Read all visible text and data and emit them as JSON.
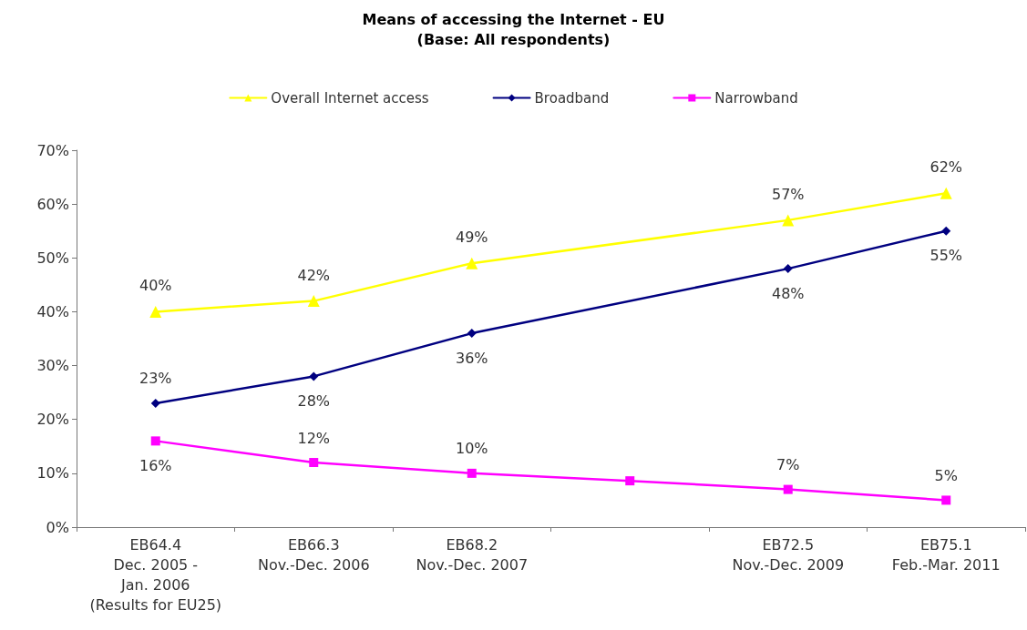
{
  "chart_data": {
    "type": "line",
    "title": "Means of accessing the Internet - EU",
    "subtitle": "(Base: All respondents)",
    "categories": [
      "EB64.4\nDec. 2005 -\nJan. 2006\n(Results for EU25)",
      "EB66.3\nNov.-Dec. 2006",
      "EB68.2\nNov.-Dec. 2007",
      null,
      "EB72.5\nNov.-Dec. 2009",
      "EB75.1\nFeb.-Mar. 2011"
    ],
    "series": [
      {
        "name": "Overall Internet access",
        "color": "#ffff00",
        "marker": "triangle",
        "values": [
          40,
          42,
          49,
          null,
          57,
          62
        ],
        "value_labels": [
          "40%",
          "42%",
          "49%",
          null,
          "57%",
          "62%"
        ]
      },
      {
        "name": "Broadband",
        "color": "#000080",
        "marker": "diamond",
        "values": [
          23,
          28,
          36,
          null,
          48,
          55
        ],
        "value_labels": [
          "23%",
          "28%",
          "36%",
          null,
          "48%",
          "55%"
        ]
      },
      {
        "name": "Narrowband",
        "color": "#ff00ff",
        "marker": "square",
        "values": [
          16,
          12,
          10,
          8.6,
          7,
          5
        ],
        "value_labels": [
          "16%",
          "12%",
          "10%",
          null,
          "7%",
          "5%"
        ]
      }
    ],
    "ylim": [
      0,
      70
    ],
    "yticks": [
      {
        "value": 0,
        "label": "0%"
      },
      {
        "value": 10,
        "label": "10%"
      },
      {
        "value": 20,
        "label": "20%"
      },
      {
        "value": 30,
        "label": "30%"
      },
      {
        "value": 40,
        "label": "40%"
      },
      {
        "value": 50,
        "label": "50%"
      },
      {
        "value": 60,
        "label": "60%"
      },
      {
        "value": 70,
        "label": "70%"
      }
    ],
    "grid": false,
    "legend": "top",
    "line_style": "solid"
  }
}
